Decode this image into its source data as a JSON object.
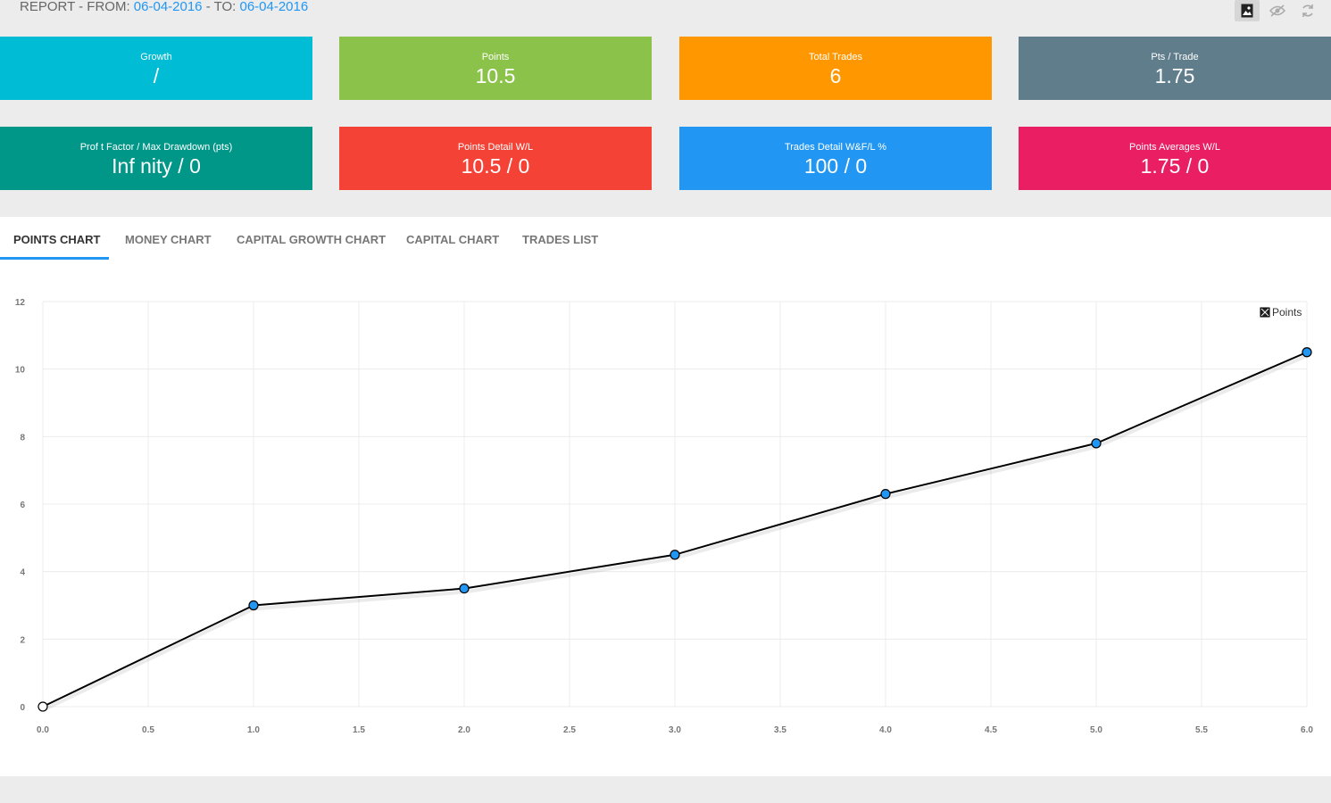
{
  "header": {
    "prefix": "REPORT - FROM: ",
    "from_date": "06-04-2016",
    "middle": " - TO: ",
    "to_date": "06-04-2016"
  },
  "toolbar": {
    "icons": [
      "image-icon",
      "hide-icon",
      "refresh-icon"
    ]
  },
  "cards": [
    {
      "label": "Growth",
      "value": "/",
      "color": "#00bcd4"
    },
    {
      "label": "Points",
      "value": "10.5",
      "color": "#8bc34a"
    },
    {
      "label": "Total Trades",
      "value": "6",
      "color": "#ff9800"
    },
    {
      "label": "Pts / Trade",
      "value": "1.75",
      "color": "#607d8b"
    },
    {
      "label": "Prof t Factor / Max Drawdown (pts)",
      "value": "Inf nity / 0",
      "color": "#009688"
    },
    {
      "label": "Points Detail W/L",
      "value": "10.5 / 0",
      "color": "#f44336"
    },
    {
      "label": "Trades Detail W&F/L %",
      "value": "100 / 0",
      "color": "#2196f3"
    },
    {
      "label": "Points Averages W/L",
      "value": "1.75 / 0",
      "color": "#e91e63"
    }
  ],
  "tabs": [
    {
      "label": "POINTS CHART",
      "active": true
    },
    {
      "label": "MONEY CHART",
      "active": false
    },
    {
      "label": "CAPITAL GROWTH CHART",
      "active": false
    },
    {
      "label": "CAPITAL CHART",
      "active": false
    },
    {
      "label": "TRADES LIST",
      "active": false
    }
  ],
  "chart_data": {
    "type": "line",
    "legend": "Points",
    "legend_position": "top-right",
    "grid": true,
    "xlim": [
      0,
      6
    ],
    "ylim": [
      0,
      12
    ],
    "x_ticks": [
      "0.0",
      "0.5",
      "1.0",
      "1.5",
      "2.0",
      "2.5",
      "3.0",
      "3.5",
      "4.0",
      "4.5",
      "5.0",
      "5.5",
      "6.0"
    ],
    "y_ticks": [
      "0",
      "2",
      "4",
      "6",
      "8",
      "10",
      "12"
    ],
    "series": [
      {
        "name": "Points",
        "x": [
          0,
          1,
          2,
          3,
          4,
          5,
          6
        ],
        "y": [
          0,
          3,
          3.5,
          4.5,
          6.3,
          7.8,
          10.5
        ]
      }
    ],
    "colors": {
      "line": "#000000",
      "marker": "#2196f3",
      "first_marker": "#ffffff"
    }
  }
}
